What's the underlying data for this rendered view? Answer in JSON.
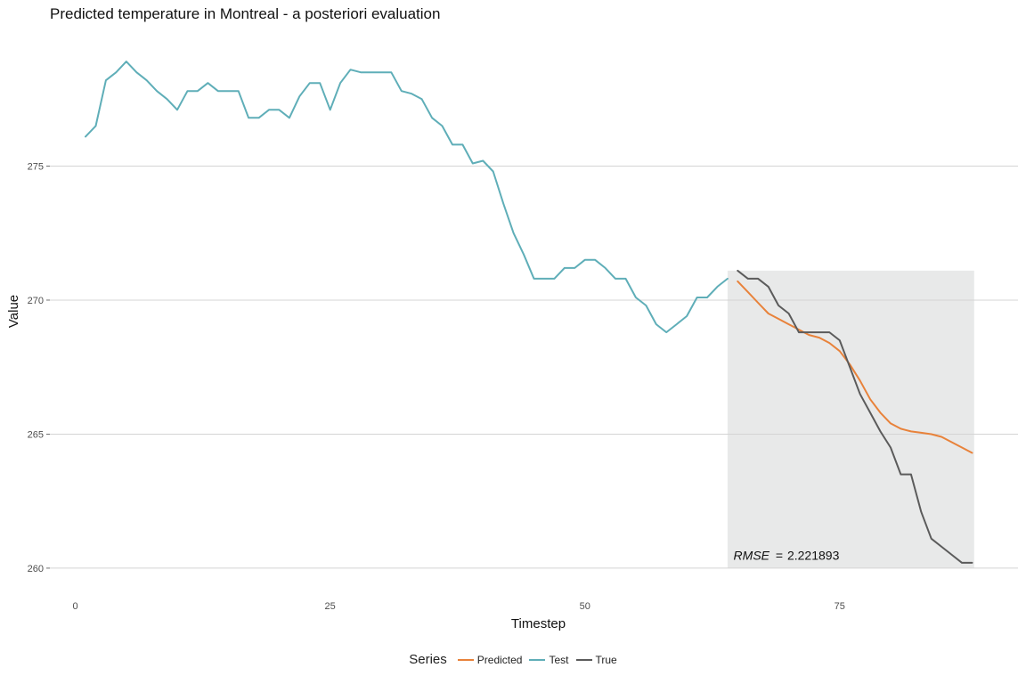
{
  "chart_data": {
    "type": "line",
    "title": "Predicted temperature in Montreal - a posteriori evaluation",
    "xlabel": "Timestep",
    "ylabel": "Value",
    "xlim": [
      -2.5,
      92.5
    ],
    "ylim": [
      259.3,
      280.2
    ],
    "xticks": [
      0,
      25,
      50,
      75
    ],
    "yticks": [
      260,
      265,
      270,
      275
    ],
    "grid": "horizontal major",
    "legend": {
      "title": "Series",
      "position": "bottom"
    },
    "highlight": {
      "x_start": 64,
      "x_end": 88.2,
      "y_start": 260,
      "y_end": 271.1
    },
    "annotation": {
      "label": "RMSE",
      "operator": "=",
      "value": "2.221893",
      "x": 70,
      "y": 260.25
    },
    "series": [
      {
        "name": "Predicted",
        "color": "#E8823A",
        "x": [
          65,
          66,
          67,
          68,
          69,
          70,
          71,
          72,
          73,
          74,
          75,
          76,
          77,
          78,
          79,
          80,
          81,
          82,
          83,
          84,
          85,
          86,
          87,
          88
        ],
        "y": [
          270.7,
          270.3,
          269.9,
          269.5,
          269.3,
          269.1,
          268.9,
          268.7,
          268.6,
          268.4,
          268.1,
          267.6,
          267.0,
          266.3,
          265.8,
          265.4,
          265.2,
          265.1,
          265.05,
          265.0,
          264.9,
          264.7,
          264.5,
          264.3
        ]
      },
      {
        "name": "Test",
        "color": "#5FAEB8",
        "x": [
          1,
          2,
          3,
          4,
          5,
          6,
          7,
          8,
          9,
          10,
          11,
          12,
          13,
          14,
          15,
          16,
          17,
          18,
          19,
          20,
          21,
          22,
          23,
          24,
          25,
          26,
          27,
          28,
          29,
          30,
          31,
          32,
          33,
          34,
          35,
          36,
          37,
          38,
          39,
          40,
          41,
          42,
          43,
          44,
          45,
          46,
          47,
          48,
          49,
          50,
          51,
          52,
          53,
          54,
          55,
          56,
          57,
          58,
          59,
          60,
          61,
          62,
          63,
          64
        ],
        "y": [
          276.1,
          276.5,
          278.2,
          278.5,
          278.9,
          278.5,
          278.2,
          277.8,
          277.5,
          277.1,
          277.8,
          277.8,
          278.1,
          277.8,
          277.8,
          277.8,
          276.8,
          276.8,
          277.1,
          277.1,
          276.8,
          277.6,
          278.1,
          278.1,
          277.1,
          278.1,
          278.6,
          278.5,
          278.5,
          278.5,
          278.5,
          277.8,
          277.7,
          277.5,
          276.8,
          276.5,
          275.8,
          275.8,
          275.1,
          275.2,
          274.8,
          273.6,
          272.5,
          271.7,
          270.8,
          270.8,
          270.8,
          271.2,
          271.2,
          271.5,
          271.5,
          271.2,
          270.8,
          270.8,
          270.1,
          269.8,
          269.1,
          268.8,
          269.1,
          269.4,
          270.1,
          270.1,
          270.5,
          270.8
        ]
      },
      {
        "name": "True",
        "color": "#5B5B5B",
        "x": [
          65,
          66,
          67,
          68,
          69,
          70,
          71,
          72,
          73,
          74,
          75,
          76,
          77,
          78,
          79,
          80,
          81,
          82,
          83,
          84,
          85,
          86,
          87,
          88
        ],
        "y": [
          271.1,
          270.8,
          270.8,
          270.5,
          269.8,
          269.5,
          268.8,
          268.8,
          268.8,
          268.8,
          268.5,
          267.5,
          266.5,
          265.8,
          265.1,
          264.5,
          263.5,
          263.5,
          262.1,
          261.1,
          260.8,
          260.5,
          260.2,
          260.2
        ]
      }
    ]
  }
}
